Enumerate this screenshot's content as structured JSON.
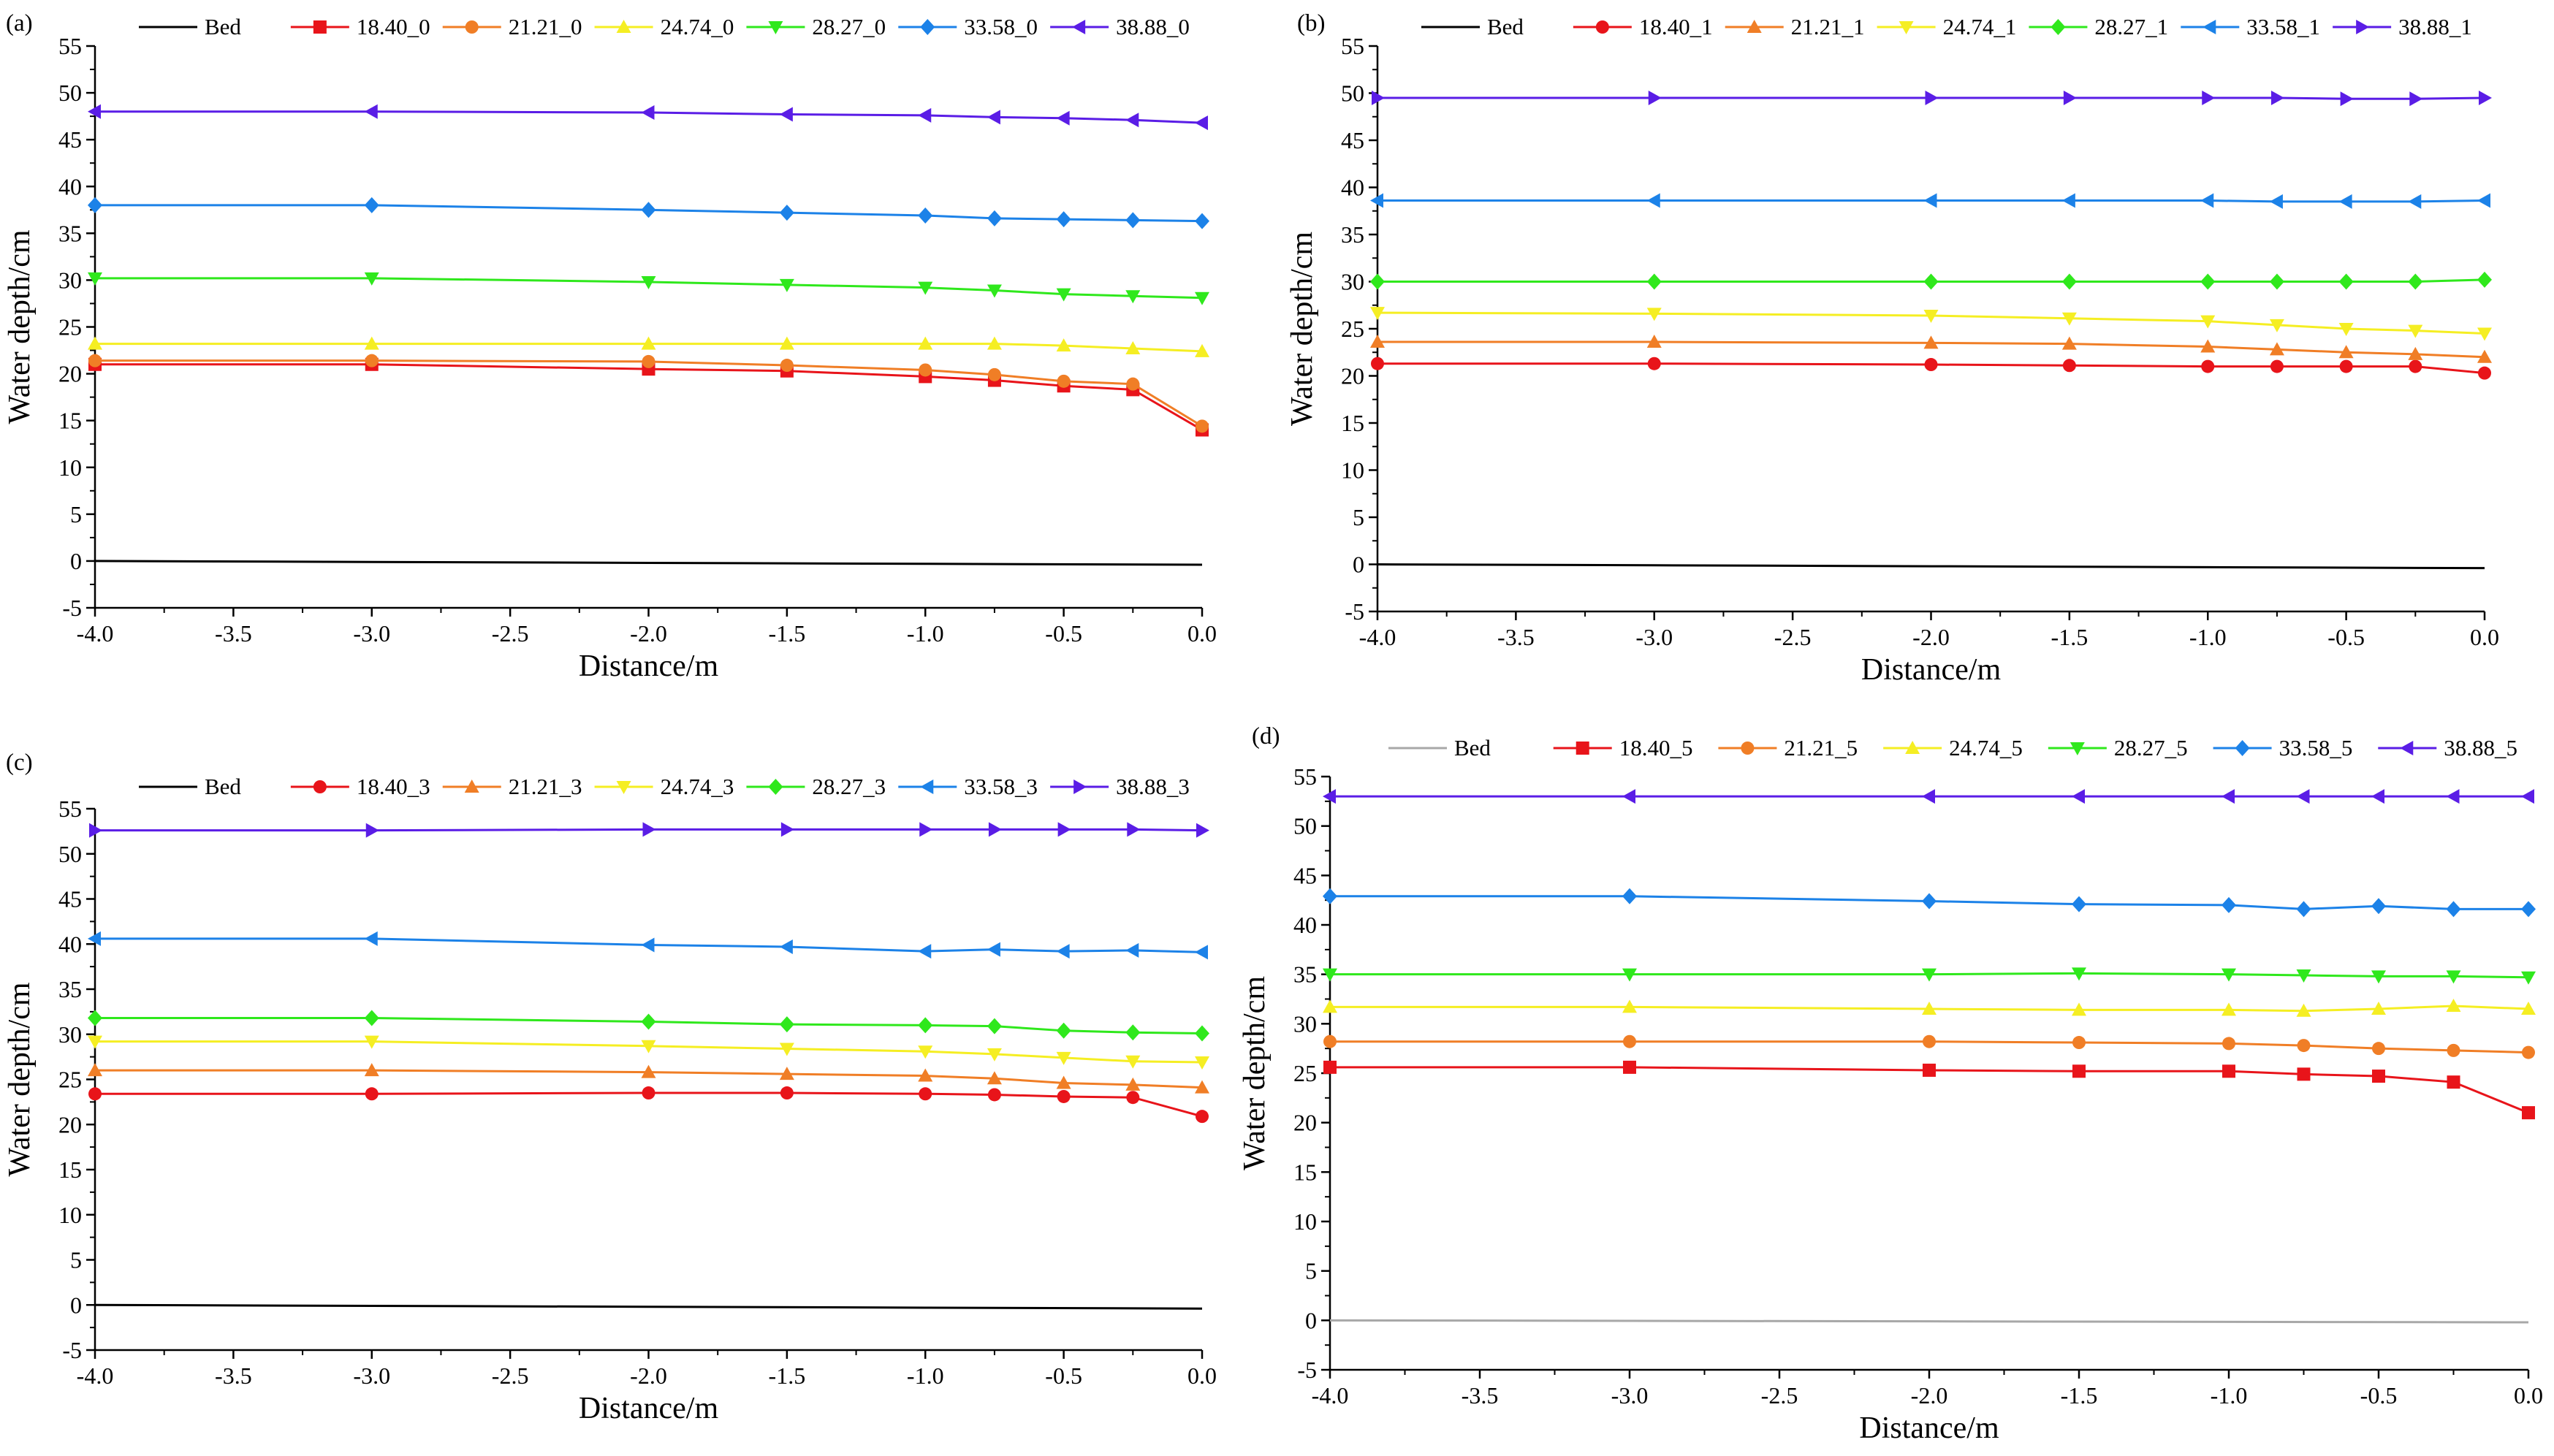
{
  "figure": {
    "colors": {
      "Bed": "#000000",
      "18.40": "#e8141a",
      "21.21": "#f07e26",
      "24.74": "#f5ee23",
      "28.27": "#2fe81c",
      "33.58": "#1c82e8",
      "38.88": "#5a1de6",
      "bed_light": "#a8a8a8"
    }
  },
  "chart_data": [
    {
      "type": "line",
      "panel_label": "(a)",
      "xlabel": "Distance/m",
      "ylabel": "Water depth/cm",
      "xlim": [
        -4.0,
        0.0
      ],
      "ylim": [
        -5,
        55
      ],
      "x_ticks": [
        "-4.0",
        "-3.5",
        "-3.0",
        "-2.5",
        "-2.0",
        "-1.5",
        "-1.0",
        "-0.5",
        "0.0"
      ],
      "y_ticks": [
        "-5",
        "0",
        "5",
        "10",
        "15",
        "20",
        "25",
        "30",
        "35",
        "40",
        "45",
        "50",
        "55"
      ],
      "legend": [
        "Bed",
        "18.40_0",
        "21.21_0",
        "24.74_0",
        "28.27_0",
        "33.58_0",
        "38.88_0"
      ],
      "bed": {
        "name": "Bed",
        "x": [
          -4.0,
          -3.0,
          -2.0,
          -1.0,
          0.0
        ],
        "values": [
          0.0,
          -0.1,
          -0.2,
          -0.3,
          -0.4
        ]
      },
      "series": [
        {
          "name": "18.40_0",
          "marker": "square",
          "x": [
            -4.0,
            -3.0,
            -2.0,
            -1.5,
            -1.0,
            -0.75,
            -0.5,
            -0.25,
            0.0
          ],
          "values": [
            21.0,
            21.0,
            20.5,
            20.3,
            19.7,
            19.3,
            18.7,
            18.3,
            14.0
          ]
        },
        {
          "name": "21.21_0",
          "marker": "circle",
          "x": [
            -4.0,
            -3.0,
            -2.0,
            -1.5,
            -1.0,
            -0.75,
            -0.5,
            -0.25,
            0.0
          ],
          "values": [
            21.4,
            21.4,
            21.3,
            20.9,
            20.4,
            19.9,
            19.2,
            18.9,
            14.4
          ]
        },
        {
          "name": "24.74_0",
          "marker": "triangle-up",
          "x": [
            -4.0,
            -3.0,
            -2.0,
            -1.5,
            -1.0,
            -0.75,
            -0.5,
            -0.25,
            0.0
          ],
          "values": [
            23.2,
            23.2,
            23.2,
            23.2,
            23.2,
            23.2,
            23.0,
            22.7,
            22.4
          ]
        },
        {
          "name": "28.27_0",
          "marker": "triangle-down",
          "x": [
            -4.0,
            -3.0,
            -2.0,
            -1.5,
            -1.0,
            -0.75,
            -0.5,
            -0.25,
            0.0
          ],
          "values": [
            30.2,
            30.2,
            29.8,
            29.5,
            29.2,
            28.9,
            28.5,
            28.3,
            28.1
          ]
        },
        {
          "name": "33.58_0",
          "marker": "diamond",
          "x": [
            -4.0,
            -3.0,
            -2.0,
            -1.5,
            -1.0,
            -0.75,
            -0.5,
            -0.25,
            0.0
          ],
          "values": [
            38.0,
            38.0,
            37.5,
            37.2,
            36.9,
            36.6,
            36.5,
            36.4,
            36.3
          ]
        },
        {
          "name": "38.88_0",
          "marker": "triangle-left",
          "x": [
            -4.0,
            -3.0,
            -2.0,
            -1.5,
            -1.0,
            -0.75,
            -0.5,
            -0.25,
            0.0
          ],
          "values": [
            48.0,
            48.0,
            47.9,
            47.7,
            47.6,
            47.4,
            47.3,
            47.1,
            46.8
          ]
        }
      ]
    },
    {
      "type": "line",
      "panel_label": "(b)",
      "xlabel": "Distance/m",
      "ylabel": "Water depth/cm",
      "xlim": [
        -4.0,
        0.0
      ],
      "ylim": [
        -5,
        55
      ],
      "x_ticks": [
        "-4.0",
        "-3.5",
        "-3.0",
        "-2.5",
        "-2.0",
        "-1.5",
        "-1.0",
        "-0.5",
        "0.0"
      ],
      "y_ticks": [
        "-5",
        "0",
        "5",
        "10",
        "15",
        "20",
        "25",
        "30",
        "35",
        "40",
        "45",
        "50",
        "55"
      ],
      "legend": [
        "Bed",
        "18.40_1",
        "21.21_1",
        "24.74_1",
        "28.27_1",
        "33.58_1",
        "38.88_1"
      ],
      "bed": {
        "name": "Bed",
        "x": [
          -4.0,
          -3.0,
          -2.0,
          -1.0,
          0.0
        ],
        "values": [
          0.0,
          -0.1,
          -0.2,
          -0.3,
          -0.4
        ]
      },
      "series": [
        {
          "name": "18.40_1",
          "marker": "circle",
          "x": [
            -4.0,
            -3.0,
            -2.0,
            -1.5,
            -1.0,
            -0.75,
            -0.5,
            -0.25,
            0.0
          ],
          "values": [
            21.3,
            21.3,
            21.2,
            21.1,
            21.0,
            21.0,
            21.0,
            21.0,
            20.3
          ]
        },
        {
          "name": "21.21_1",
          "marker": "triangle-up",
          "x": [
            -4.0,
            -3.0,
            -2.0,
            -1.5,
            -1.0,
            -0.75,
            -0.5,
            -0.25,
            0.0
          ],
          "values": [
            23.6,
            23.6,
            23.5,
            23.4,
            23.1,
            22.8,
            22.5,
            22.3,
            22.0
          ]
        },
        {
          "name": "24.74_1",
          "marker": "triangle-down",
          "x": [
            -4.0,
            -3.0,
            -2.0,
            -1.5,
            -1.0,
            -0.75,
            -0.5,
            -0.25,
            0.0
          ],
          "values": [
            26.7,
            26.6,
            26.4,
            26.1,
            25.8,
            25.4,
            25.0,
            24.8,
            24.5
          ]
        },
        {
          "name": "28.27_1",
          "marker": "diamond",
          "x": [
            -4.0,
            -3.0,
            -2.0,
            -1.5,
            -1.0,
            -0.75,
            -0.5,
            -0.25,
            0.0
          ],
          "values": [
            30.0,
            30.0,
            30.0,
            30.0,
            30.0,
            30.0,
            30.0,
            30.0,
            30.2
          ]
        },
        {
          "name": "33.58_1",
          "marker": "triangle-left",
          "x": [
            -4.0,
            -3.0,
            -2.0,
            -1.5,
            -1.0,
            -0.75,
            -0.5,
            -0.25,
            0.0
          ],
          "values": [
            38.6,
            38.6,
            38.6,
            38.6,
            38.6,
            38.5,
            38.5,
            38.5,
            38.6
          ]
        },
        {
          "name": "38.88_1",
          "marker": "triangle-right",
          "x": [
            -4.0,
            -3.0,
            -2.0,
            -1.5,
            -1.0,
            -0.75,
            -0.5,
            -0.25,
            0.0
          ],
          "values": [
            49.5,
            49.5,
            49.5,
            49.5,
            49.5,
            49.5,
            49.4,
            49.4,
            49.5
          ]
        }
      ]
    },
    {
      "type": "line",
      "panel_label": "(c)",
      "xlabel": "Distance/m",
      "ylabel": "Water depth/cm",
      "xlim": [
        -4.0,
        0.0
      ],
      "ylim": [
        -5,
        55
      ],
      "x_ticks": [
        "-4.0",
        "-3.5",
        "-3.0",
        "-2.5",
        "-2.0",
        "-1.5",
        "-1.0",
        "-0.5",
        "0.0"
      ],
      "y_ticks": [
        "-5",
        "0",
        "5",
        "10",
        "15",
        "20",
        "25",
        "30",
        "35",
        "40",
        "45",
        "50",
        "55"
      ],
      "legend": [
        "Bed",
        "18.40_3",
        "21.21_3",
        "24.74_3",
        "28.27_3",
        "33.58_3",
        "38.88_3"
      ],
      "bed": {
        "name": "Bed",
        "x": [
          -4.0,
          -3.0,
          -2.0,
          -1.0,
          0.0
        ],
        "values": [
          0.0,
          -0.1,
          -0.2,
          -0.3,
          -0.4
        ]
      },
      "series": [
        {
          "name": "18.40_3",
          "marker": "circle",
          "x": [
            -4.0,
            -3.0,
            -2.0,
            -1.5,
            -1.0,
            -0.75,
            -0.5,
            -0.25,
            0.0
          ],
          "values": [
            23.4,
            23.4,
            23.5,
            23.5,
            23.4,
            23.3,
            23.1,
            23.0,
            20.9
          ]
        },
        {
          "name": "21.21_3",
          "marker": "triangle-up",
          "x": [
            -4.0,
            -3.0,
            -2.0,
            -1.5,
            -1.0,
            -0.75,
            -0.5,
            -0.25,
            0.0
          ],
          "values": [
            26.0,
            26.0,
            25.8,
            25.6,
            25.4,
            25.1,
            24.6,
            24.4,
            24.1
          ]
        },
        {
          "name": "24.74_3",
          "marker": "triangle-down",
          "x": [
            -4.0,
            -3.0,
            -2.0,
            -1.5,
            -1.0,
            -0.75,
            -0.5,
            -0.25,
            0.0
          ],
          "values": [
            29.2,
            29.2,
            28.7,
            28.4,
            28.1,
            27.8,
            27.4,
            27.0,
            26.9
          ]
        },
        {
          "name": "28.27_3",
          "marker": "diamond",
          "x": [
            -4.0,
            -3.0,
            -2.0,
            -1.5,
            -1.0,
            -0.75,
            -0.5,
            -0.25,
            0.0
          ],
          "values": [
            31.8,
            31.8,
            31.4,
            31.1,
            31.0,
            30.9,
            30.4,
            30.2,
            30.1
          ]
        },
        {
          "name": "33.58_3",
          "marker": "triangle-left",
          "x": [
            -4.0,
            -3.0,
            -2.0,
            -1.5,
            -1.0,
            -0.75,
            -0.5,
            -0.25,
            0.0
          ],
          "values": [
            40.6,
            40.6,
            39.9,
            39.7,
            39.2,
            39.4,
            39.2,
            39.3,
            39.1
          ]
        },
        {
          "name": "38.88_3",
          "marker": "triangle-right",
          "x": [
            -4.0,
            -3.0,
            -2.0,
            -1.5,
            -1.0,
            -0.75,
            -0.5,
            -0.25,
            0.0
          ],
          "values": [
            52.6,
            52.6,
            52.7,
            52.7,
            52.7,
            52.7,
            52.7,
            52.7,
            52.6
          ]
        }
      ]
    },
    {
      "type": "line",
      "panel_label": "(d)",
      "xlabel": "Distance/m",
      "ylabel": "Water depth/cm",
      "xlim": [
        -4.0,
        0.0
      ],
      "ylim": [
        -5,
        55
      ],
      "x_ticks": [
        "-4.0",
        "-3.5",
        "-3.0",
        "-2.5",
        "-2.0",
        "-1.5",
        "-1.0",
        "-0.5",
        "0.0"
      ],
      "y_ticks": [
        "-5",
        "0",
        "5",
        "10",
        "15",
        "20",
        "25",
        "30",
        "35",
        "40",
        "45",
        "50",
        "55"
      ],
      "legend": [
        "Bed",
        "18.40_5",
        "21.21_5",
        "24.74_5",
        "28.27_5",
        "33.58_5",
        "38.88_5"
      ],
      "bed": {
        "name": "Bed",
        "x": [
          -4.0,
          -3.0,
          -2.0,
          -1.0,
          0.0
        ],
        "values": [
          0.0,
          -0.05,
          -0.1,
          -0.15,
          -0.2
        ],
        "light": true
      },
      "series": [
        {
          "name": "18.40_5",
          "marker": "square",
          "x": [
            -4.0,
            -3.0,
            -2.0,
            -1.5,
            -1.0,
            -0.75,
            -0.5,
            -0.25,
            0.0
          ],
          "values": [
            25.6,
            25.6,
            25.3,
            25.2,
            25.2,
            24.9,
            24.7,
            24.1,
            21.0
          ]
        },
        {
          "name": "21.21_5",
          "marker": "circle",
          "x": [
            -4.0,
            -3.0,
            -2.0,
            -1.5,
            -1.0,
            -0.75,
            -0.5,
            -0.25,
            0.0
          ],
          "values": [
            28.2,
            28.2,
            28.2,
            28.1,
            28.0,
            27.8,
            27.5,
            27.3,
            27.1
          ]
        },
        {
          "name": "24.74_5",
          "marker": "triangle-up",
          "x": [
            -4.0,
            -3.0,
            -2.0,
            -1.5,
            -1.0,
            -0.75,
            -0.5,
            -0.25,
            0.0
          ],
          "values": [
            31.7,
            31.7,
            31.5,
            31.4,
            31.4,
            31.3,
            31.5,
            31.8,
            31.5
          ]
        },
        {
          "name": "28.27_5",
          "marker": "triangle-down",
          "x": [
            -4.0,
            -3.0,
            -2.0,
            -1.5,
            -1.0,
            -0.75,
            -0.5,
            -0.25,
            0.0
          ],
          "values": [
            35.0,
            35.0,
            35.0,
            35.1,
            35.0,
            34.9,
            34.8,
            34.8,
            34.7
          ]
        },
        {
          "name": "33.58_5",
          "marker": "diamond",
          "x": [
            -4.0,
            -3.0,
            -2.0,
            -1.5,
            -1.0,
            -0.75,
            -0.5,
            -0.25,
            0.0
          ],
          "values": [
            42.9,
            42.9,
            42.4,
            42.1,
            42.0,
            41.6,
            41.9,
            41.6,
            41.6
          ]
        },
        {
          "name": "38.88_5",
          "marker": "triangle-left",
          "x": [
            -4.0,
            -3.0,
            -2.0,
            -1.5,
            -1.0,
            -0.75,
            -0.5,
            -0.25,
            0.0
          ],
          "values": [
            53.0,
            53.0,
            53.0,
            53.0,
            53.0,
            53.0,
            53.0,
            53.0,
            53.0
          ]
        }
      ]
    }
  ]
}
